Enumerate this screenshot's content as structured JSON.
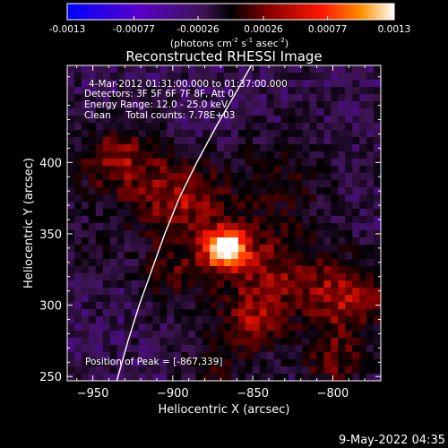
{
  "chart_data": {
    "type": "heatmap",
    "title": "Reconstructed RHESSI Image",
    "colorbar": {
      "ticks": [
        "-0.0013",
        "-0.00077",
        "-0.00026",
        "0.00026",
        "0.00077",
        "0.0013"
      ],
      "range": [
        -0.0013,
        0.0013
      ],
      "unit_main": "(photons cm",
      "unit_sup1": "-2",
      "unit_mid": " s",
      "unit_sup2": "-1",
      "unit_asec": " asec",
      "unit_sup3": "-2",
      "unit_close": ")",
      "colors": [
        "#0000ff",
        "#5a00c8",
        "#3c1450",
        "#000000",
        "#7a0000",
        "#ff1800",
        "#ff8000",
        "#ffffff"
      ]
    },
    "xlabel": "Heliocentric X (arcsec)",
    "ylabel": "Heliocentric Y (arcsec)",
    "xlim": [
      -966,
      -770
    ],
    "ylim": [
      247,
      468
    ],
    "x_ticks": [
      -950,
      -900,
      -850,
      -800
    ],
    "y_ticks": [
      250,
      300,
      350,
      400
    ],
    "x_tick_labels": [
      "−950",
      "−900",
      "−850",
      "−800"
    ],
    "y_tick_labels": [
      "250",
      "300",
      "350",
      "400"
    ],
    "annotations": [
      "4-Mar-2012 01:31:00.000 to 01:37:00.000",
      "Detectors: 3F 5F 6F 7F 8F, Att 0",
      "Energy Range: 12.0 - 25.0 keV",
      "Clean     Total counts: 7.78E+03"
    ],
    "peak_label": "Position of Peak = [-867,339]",
    "peak": [
      -867,
      339
    ],
    "limb": [
      [
        -935,
        247
      ],
      [
        -928,
        275
      ],
      [
        -921,
        300
      ],
      [
        -913,
        325
      ],
      [
        -905,
        350
      ],
      [
        -896,
        375
      ],
      [
        -885,
        400
      ],
      [
        -873,
        425
      ],
      [
        -860,
        450
      ],
      [
        -851,
        468
      ]
    ],
    "intensity_grid_note": "Relative intensity map sampled on a 26 x 30 grid (rows from top to bottom)"
  },
  "footer_date": "9-May-2022 04:35"
}
